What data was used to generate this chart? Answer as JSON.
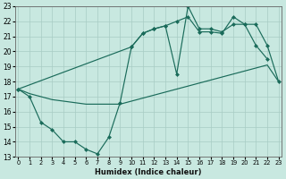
{
  "xlabel": "Humidex (Indice chaleur)",
  "bg_color": "#c8e8e0",
  "line_color": "#1a6b5a",
  "xlim": [
    -0.3,
    23.3
  ],
  "ylim": [
    13,
    23
  ],
  "xticks": [
    0,
    1,
    2,
    3,
    4,
    5,
    6,
    7,
    8,
    9,
    10,
    11,
    12,
    13,
    14,
    15,
    16,
    17,
    18,
    19,
    20,
    21,
    22,
    23
  ],
  "yticks": [
    13,
    14,
    15,
    16,
    17,
    18,
    19,
    20,
    21,
    22,
    23
  ],
  "line1_x": [
    0,
    1,
    2,
    3,
    4,
    5,
    6,
    7,
    8,
    9,
    10,
    11,
    12,
    13,
    14,
    15,
    16,
    17,
    18,
    19,
    20,
    21,
    22
  ],
  "line1_y": [
    17.5,
    17.0,
    15.3,
    14.8,
    14.0,
    14.0,
    13.5,
    13.2,
    14.3,
    16.6,
    20.3,
    21.2,
    21.5,
    21.7,
    18.5,
    23.0,
    21.5,
    21.5,
    21.3,
    21.8,
    21.8,
    20.4,
    19.5
  ],
  "line2_x": [
    0,
    1,
    2,
    3,
    4,
    5,
    6,
    7,
    8,
    9,
    10,
    11,
    12,
    13,
    14,
    15,
    16,
    17,
    18,
    19,
    20,
    21,
    22,
    23
  ],
  "line2_y": [
    17.5,
    17.2,
    17.0,
    16.8,
    16.7,
    16.6,
    16.5,
    16.5,
    16.5,
    16.5,
    16.7,
    16.9,
    17.1,
    17.3,
    17.5,
    17.7,
    17.9,
    18.1,
    18.3,
    18.5,
    18.7,
    18.9,
    19.1,
    18.0
  ],
  "line3_x": [
    0,
    10,
    11,
    12,
    13,
    14,
    15,
    16,
    17,
    18,
    19,
    20,
    21,
    22,
    23
  ],
  "line3_y": [
    17.5,
    20.3,
    21.2,
    21.5,
    21.7,
    22.0,
    22.3,
    21.3,
    21.3,
    21.2,
    22.3,
    21.8,
    21.8,
    20.4,
    18.0
  ],
  "grid_color": "#a8ccc4",
  "lw": 0.85,
  "ms": 2.5
}
